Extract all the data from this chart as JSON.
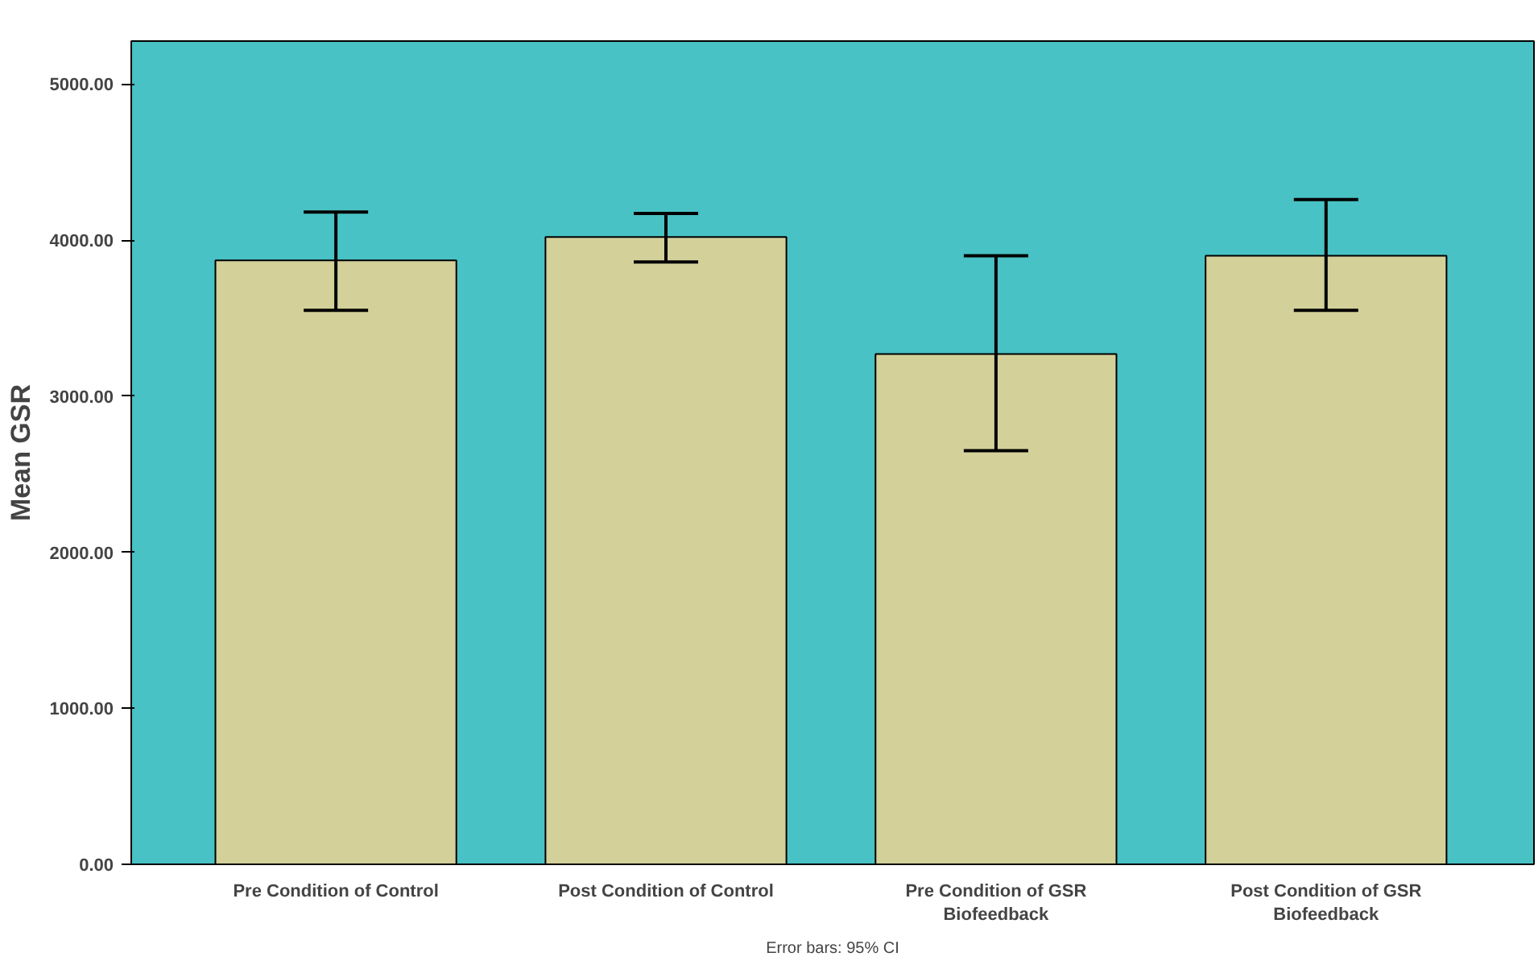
{
  "chart_data": {
    "type": "bar",
    "ylabel": "Mean GSR",
    "categories": [
      "Pre Condition of Control",
      "Post Condition of Control",
      "Pre Condition of GSR\nBiofeedback",
      "Post Condition of GSR\nBiofeedback"
    ],
    "values": [
      3870,
      4020,
      3270,
      3900
    ],
    "errors": [
      [
        3550,
        4180
      ],
      [
        3860,
        4170
      ],
      [
        2650,
        3900
      ],
      [
        3550,
        4260
      ]
    ],
    "color": "#d3d09a",
    "ylim": [
      0,
      5275
    ],
    "yticks": [
      {
        "value": 0,
        "label": "0.00"
      },
      {
        "value": 1000,
        "label": "1000.00"
      },
      {
        "value": 2000,
        "label": "2000.00"
      },
      {
        "value": 3000,
        "label": "3000.00"
      },
      {
        "value": 4000,
        "label": "4000.00"
      },
      {
        "value": 5000,
        "label": "5000.00"
      }
    ],
    "grid": false,
    "annotations": [
      "Error bars: 95% CI"
    ]
  }
}
